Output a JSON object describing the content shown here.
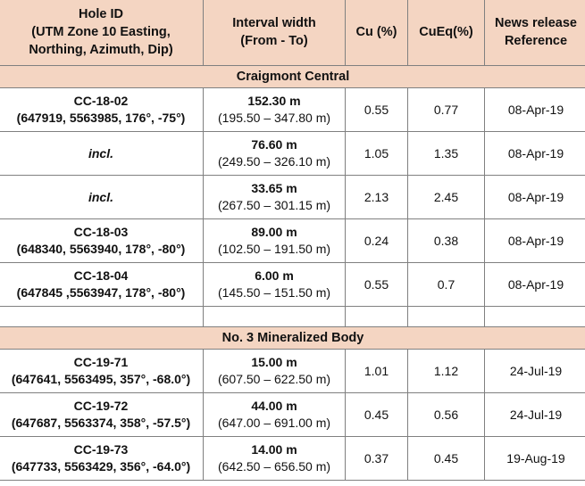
{
  "headers": {
    "hole_id": "Hole ID",
    "hole_id_sub1": "(UTM Zone 10 Easting,",
    "hole_id_sub2": "Northing, Azimuth, Dip)",
    "interval": "Interval width",
    "interval_sub": "(From - To)",
    "cu": "Cu (%)",
    "cueq": "CuEq(%)",
    "news1": "News release",
    "news2": "Reference"
  },
  "sections": [
    {
      "title": "Craigmont Central",
      "rows": [
        {
          "hole": "CC-18-02",
          "coords": "(647919, 5563985, 176°, -75°)",
          "width": "152.30 m",
          "range": "(195.50 – 347.80 m)",
          "cu": "0.55",
          "cueq": "0.77",
          "ref": "08-Apr-19"
        },
        {
          "hole": "incl.",
          "coords": "",
          "width": "76.60 m",
          "range": "(249.50 – 326.10 m)",
          "cu": "1.05",
          "cueq": "1.35",
          "ref": "08-Apr-19"
        },
        {
          "hole": "incl.",
          "coords": "",
          "width": "33.65 m",
          "range": "(267.50 – 301.15 m)",
          "cu": "2.13",
          "cueq": "2.45",
          "ref": "08-Apr-19"
        },
        {
          "hole": "CC-18-03",
          "coords": "(648340, 5563940, 178°, -80°)",
          "width": "89.00 m",
          "range": "(102.50 – 191.50 m)",
          "cu": "0.24",
          "cueq": "0.38",
          "ref": "08-Apr-19"
        },
        {
          "hole": "CC-18-04",
          "coords": "(647845 ,5563947, 178°, -80°)",
          "width": "6.00 m",
          "range": "(145.50 – 151.50 m)",
          "cu": "0.55",
          "cueq": "0.7",
          "ref": "08-Apr-19"
        }
      ]
    },
    {
      "title": "No. 3 Mineralized Body",
      "rows": [
        {
          "hole": "CC-19-71",
          "coords": "(647641, 5563495, 357°, -68.0°)",
          "width": "15.00 m",
          "range": "(607.50 – 622.50 m)",
          "cu": "1.01",
          "cueq": "1.12",
          "ref": "24-Jul-19"
        },
        {
          "hole": "CC-19-72",
          "coords": "(647687, 5563374, 358°, -57.5°)",
          "width": "44.00 m",
          "range": "(647.00 – 691.00 m)",
          "cu": "0.45",
          "cueq": "0.56",
          "ref": "24-Jul-19"
        },
        {
          "hole": "CC-19-73",
          "coords": "(647733, 5563429, 356°, -64.0°)",
          "width": "14.00 m",
          "range": "(642.50 – 656.50 m)",
          "cu": "0.37",
          "cueq": "0.45",
          "ref": "19-Aug-19"
        }
      ]
    }
  ]
}
